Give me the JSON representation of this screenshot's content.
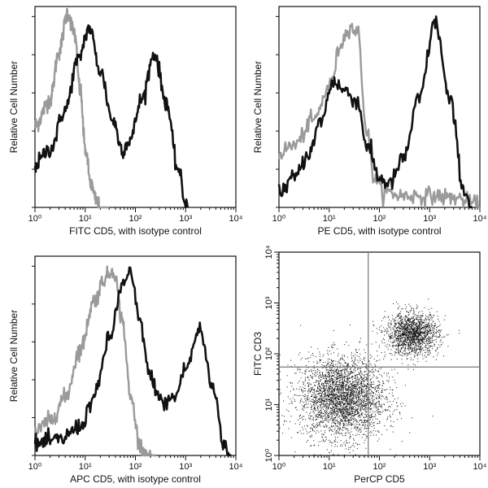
{
  "chart_data": [
    {
      "type": "line",
      "xscale": "log",
      "xlim": [
        1,
        10000
      ],
      "ylim": [
        0,
        100
      ],
      "xlabel": "FITC CD5, with isotype control",
      "ylabel": "Relative Cell Number",
      "xtick_labels": [
        "10⁰",
        "10¹",
        "10²",
        "10³",
        "10⁴"
      ],
      "series": [
        {
          "color": "#9a9a9a",
          "x": [
            1,
            2,
            3,
            4.5,
            6,
            8,
            10,
            13,
            16,
            20,
            30
          ],
          "y": [
            42,
            55,
            80,
            100,
            90,
            60,
            30,
            12,
            4,
            0,
            0
          ]
        },
        {
          "color": "#111111",
          "x": [
            1,
            2,
            4,
            7,
            12,
            20,
            35,
            55,
            80,
            130,
            240,
            400,
            700,
            1000,
            1100
          ],
          "y": [
            22,
            30,
            50,
            75,
            92,
            70,
            45,
            30,
            35,
            55,
            79,
            55,
            20,
            2,
            0
          ]
        }
      ]
    },
    {
      "type": "line",
      "xscale": "log",
      "xlim": [
        1,
        10000
      ],
      "ylim": [
        0,
        100
      ],
      "xlabel": "PE CD5, with isotype control",
      "ylabel": "Relative Cell Number",
      "xtick_labels": [
        "10⁰",
        "10¹",
        "10²",
        "10³",
        "10⁴"
      ],
      "series": [
        {
          "color": "#9a9a9a",
          "x": [
            1,
            2,
            5,
            10,
            18,
            25,
            37,
            55,
            80,
            120,
            300,
            1000,
            3000,
            8000,
            10000
          ],
          "y": [
            28,
            32,
            45,
            62,
            85,
            93,
            90,
            40,
            15,
            8,
            6,
            6,
            5,
            2,
            0
          ]
        },
        {
          "color": "#111111",
          "x": [
            1,
            2,
            4,
            7,
            12,
            20,
            35,
            60,
            100,
            160,
            300,
            600,
            1300,
            2500,
            5000,
            7000
          ],
          "y": [
            8,
            15,
            28,
            45,
            65,
            60,
            55,
            30,
            15,
            12,
            25,
            55,
            95,
            55,
            8,
            0
          ]
        }
      ]
    },
    {
      "type": "line",
      "xscale": "log",
      "xlim": [
        1,
        10000
      ],
      "ylim": [
        0,
        100
      ],
      "xlabel": "APC CD5, with isotype control",
      "ylabel": "Relative Cell Number",
      "xtick_labels": [
        "10⁰",
        "10¹",
        "10²",
        "10³",
        "10⁴"
      ],
      "series": [
        {
          "color": "#9a9a9a",
          "x": [
            1,
            2,
            4,
            8,
            15,
            25,
            37,
            55,
            80,
            125,
            160,
            250
          ],
          "y": [
            12,
            18,
            30,
            55,
            80,
            92,
            96,
            70,
            30,
            5,
            1,
            0
          ]
        },
        {
          "color": "#111111",
          "x": [
            1,
            3,
            8,
            15,
            30,
            55,
            80,
            120,
            200,
            350,
            600,
            1000,
            1900,
            3500,
            6000,
            8000
          ],
          "y": [
            6,
            8,
            15,
            30,
            60,
            88,
            94,
            70,
            40,
            27,
            30,
            45,
            65,
            35,
            5,
            0
          ]
        }
      ]
    },
    {
      "type": "scatter",
      "xscale": "log",
      "yscale": "log",
      "xlim": [
        1,
        10000
      ],
      "ylim": [
        1,
        10000
      ],
      "xlabel": "PerCP CD5",
      "ylabel": "FITC CD3",
      "xtick_labels": [
        "10⁰",
        "10¹",
        "10²",
        "10³",
        "10⁴"
      ],
      "ytick_labels": [
        "10⁰",
        "10¹",
        "10²",
        "10³",
        "10⁴"
      ],
      "quadrant_gates": {
        "x": 60,
        "y": 55
      },
      "clusters": [
        {
          "center": [
            18,
            14
          ],
          "count": 3200
        },
        {
          "center": [
            450,
            250
          ],
          "count": 1600
        }
      ],
      "point_color": "#111111"
    }
  ]
}
